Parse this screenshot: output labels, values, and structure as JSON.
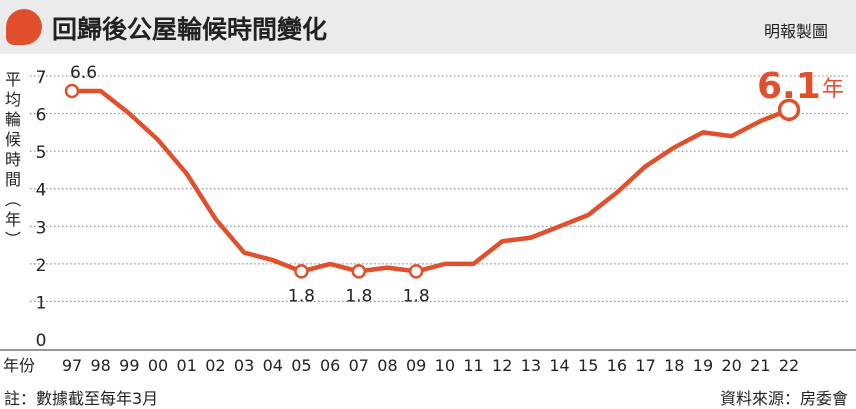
{
  "header": {
    "title": "回歸後公屋輪候時間變化",
    "credit": "明報製圖"
  },
  "colors": {
    "accent": "#e0502d",
    "header_bg": "#ebebeb",
    "text": "#222222"
  },
  "footer": {
    "note": "註：數據截至每年3月",
    "source": "資料來源：房委會"
  },
  "chart_data": {
    "type": "line",
    "title": "回歸後公屋輪候時間變化",
    "ylabel": "平均輪候時間（年）",
    "ylabel_chars": [
      "平",
      "均",
      "輪",
      "候",
      "時",
      "間",
      "︵",
      "年",
      "︶"
    ],
    "x_axis_label": "年份",
    "categories": [
      "97",
      "98",
      "99",
      "00",
      "01",
      "02",
      "03",
      "04",
      "05",
      "06",
      "07",
      "08",
      "09",
      "10",
      "11",
      "12",
      "13",
      "14",
      "15",
      "16",
      "17",
      "18",
      "19",
      "20",
      "21",
      "22"
    ],
    "series": [
      {
        "values": [
          6.6,
          6.6,
          6.0,
          5.3,
          4.4,
          3.2,
          2.3,
          2.1,
          1.8,
          2.0,
          1.8,
          1.9,
          1.8,
          2.0,
          2.0,
          2.6,
          2.7,
          3.0,
          3.3,
          3.9,
          4.6,
          5.1,
          5.5,
          5.4,
          5.8,
          6.1
        ]
      }
    ],
    "yticks": [
      "0",
      "1",
      "2",
      "3",
      "4",
      "5",
      "6",
      "7"
    ],
    "ylim": [
      0,
      7
    ],
    "grid": "horizontal dotted",
    "point_annotations": [
      {
        "index": 0,
        "text": "6.6",
        "position": "above"
      },
      {
        "index": 8,
        "text": "1.8",
        "position": "below"
      },
      {
        "index": 10,
        "text": "1.8",
        "position": "below"
      },
      {
        "index": 12,
        "text": "1.8",
        "position": "below"
      }
    ],
    "highlight": {
      "index": 25,
      "value": "6.1",
      "unit": "年"
    }
  }
}
